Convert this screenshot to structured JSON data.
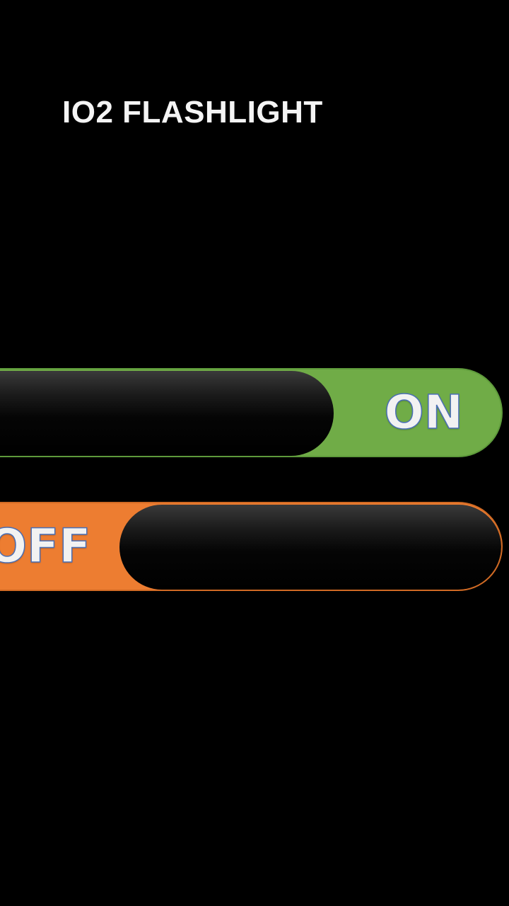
{
  "app": {
    "title": "IO2 FLASHLIGHT"
  },
  "switches": {
    "on": {
      "label": "ON",
      "color": "#70ac47"
    },
    "off": {
      "label": "OFF",
      "color": "#ed7d31"
    }
  },
  "theme": {
    "background": "#000000",
    "title_color": "#f4f4f4",
    "label_outline": "#4b6fb5"
  }
}
